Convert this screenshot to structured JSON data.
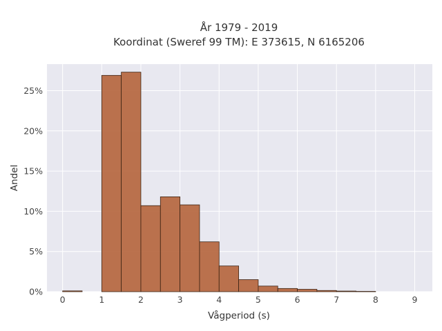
{
  "chart_data": {
    "type": "bar",
    "title": "År 1979 - 2019",
    "subtitle": "Koordinat (Sweref 99 TM): E 373615, N 6165206",
    "xlabel": "Vågperiod (s)",
    "ylabel": "Andel",
    "xlim": [
      -0.4,
      9.45
    ],
    "ylim": [
      0,
      28.3
    ],
    "x_ticks": [
      0,
      1,
      2,
      3,
      4,
      5,
      6,
      7,
      8,
      9
    ],
    "x_tick_labels": [
      "0",
      "1",
      "2",
      "3",
      "4",
      "5",
      "6",
      "7",
      "8",
      "9"
    ],
    "y_ticks": [
      0,
      5,
      10,
      15,
      20,
      25
    ],
    "y_tick_labels": [
      "0%",
      "5%",
      "10%",
      "15%",
      "20%",
      "25%"
    ],
    "bin_width": 0.5,
    "bins": [
      {
        "x0": 0.0,
        "value": 0.1
      },
      {
        "x0": 0.5,
        "value": 0.0
      },
      {
        "x0": 1.0,
        "value": 26.9
      },
      {
        "x0": 1.5,
        "value": 27.3
      },
      {
        "x0": 2.0,
        "value": 10.7
      },
      {
        "x0": 2.5,
        "value": 11.8
      },
      {
        "x0": 3.0,
        "value": 10.8
      },
      {
        "x0": 3.5,
        "value": 6.2
      },
      {
        "x0": 4.0,
        "value": 3.2
      },
      {
        "x0": 4.5,
        "value": 1.5
      },
      {
        "x0": 5.0,
        "value": 0.7
      },
      {
        "x0": 5.5,
        "value": 0.4
      },
      {
        "x0": 6.0,
        "value": 0.3
      },
      {
        "x0": 6.5,
        "value": 0.15
      },
      {
        "x0": 7.0,
        "value": 0.08
      },
      {
        "x0": 7.5,
        "value": 0.04
      }
    ],
    "grid": true,
    "legend": "none",
    "colors": {
      "bar_fill": "#b5643b",
      "bar_stroke": "#3b2314",
      "plot_background": "#e8e8f0",
      "grid": "#ffffff"
    }
  }
}
